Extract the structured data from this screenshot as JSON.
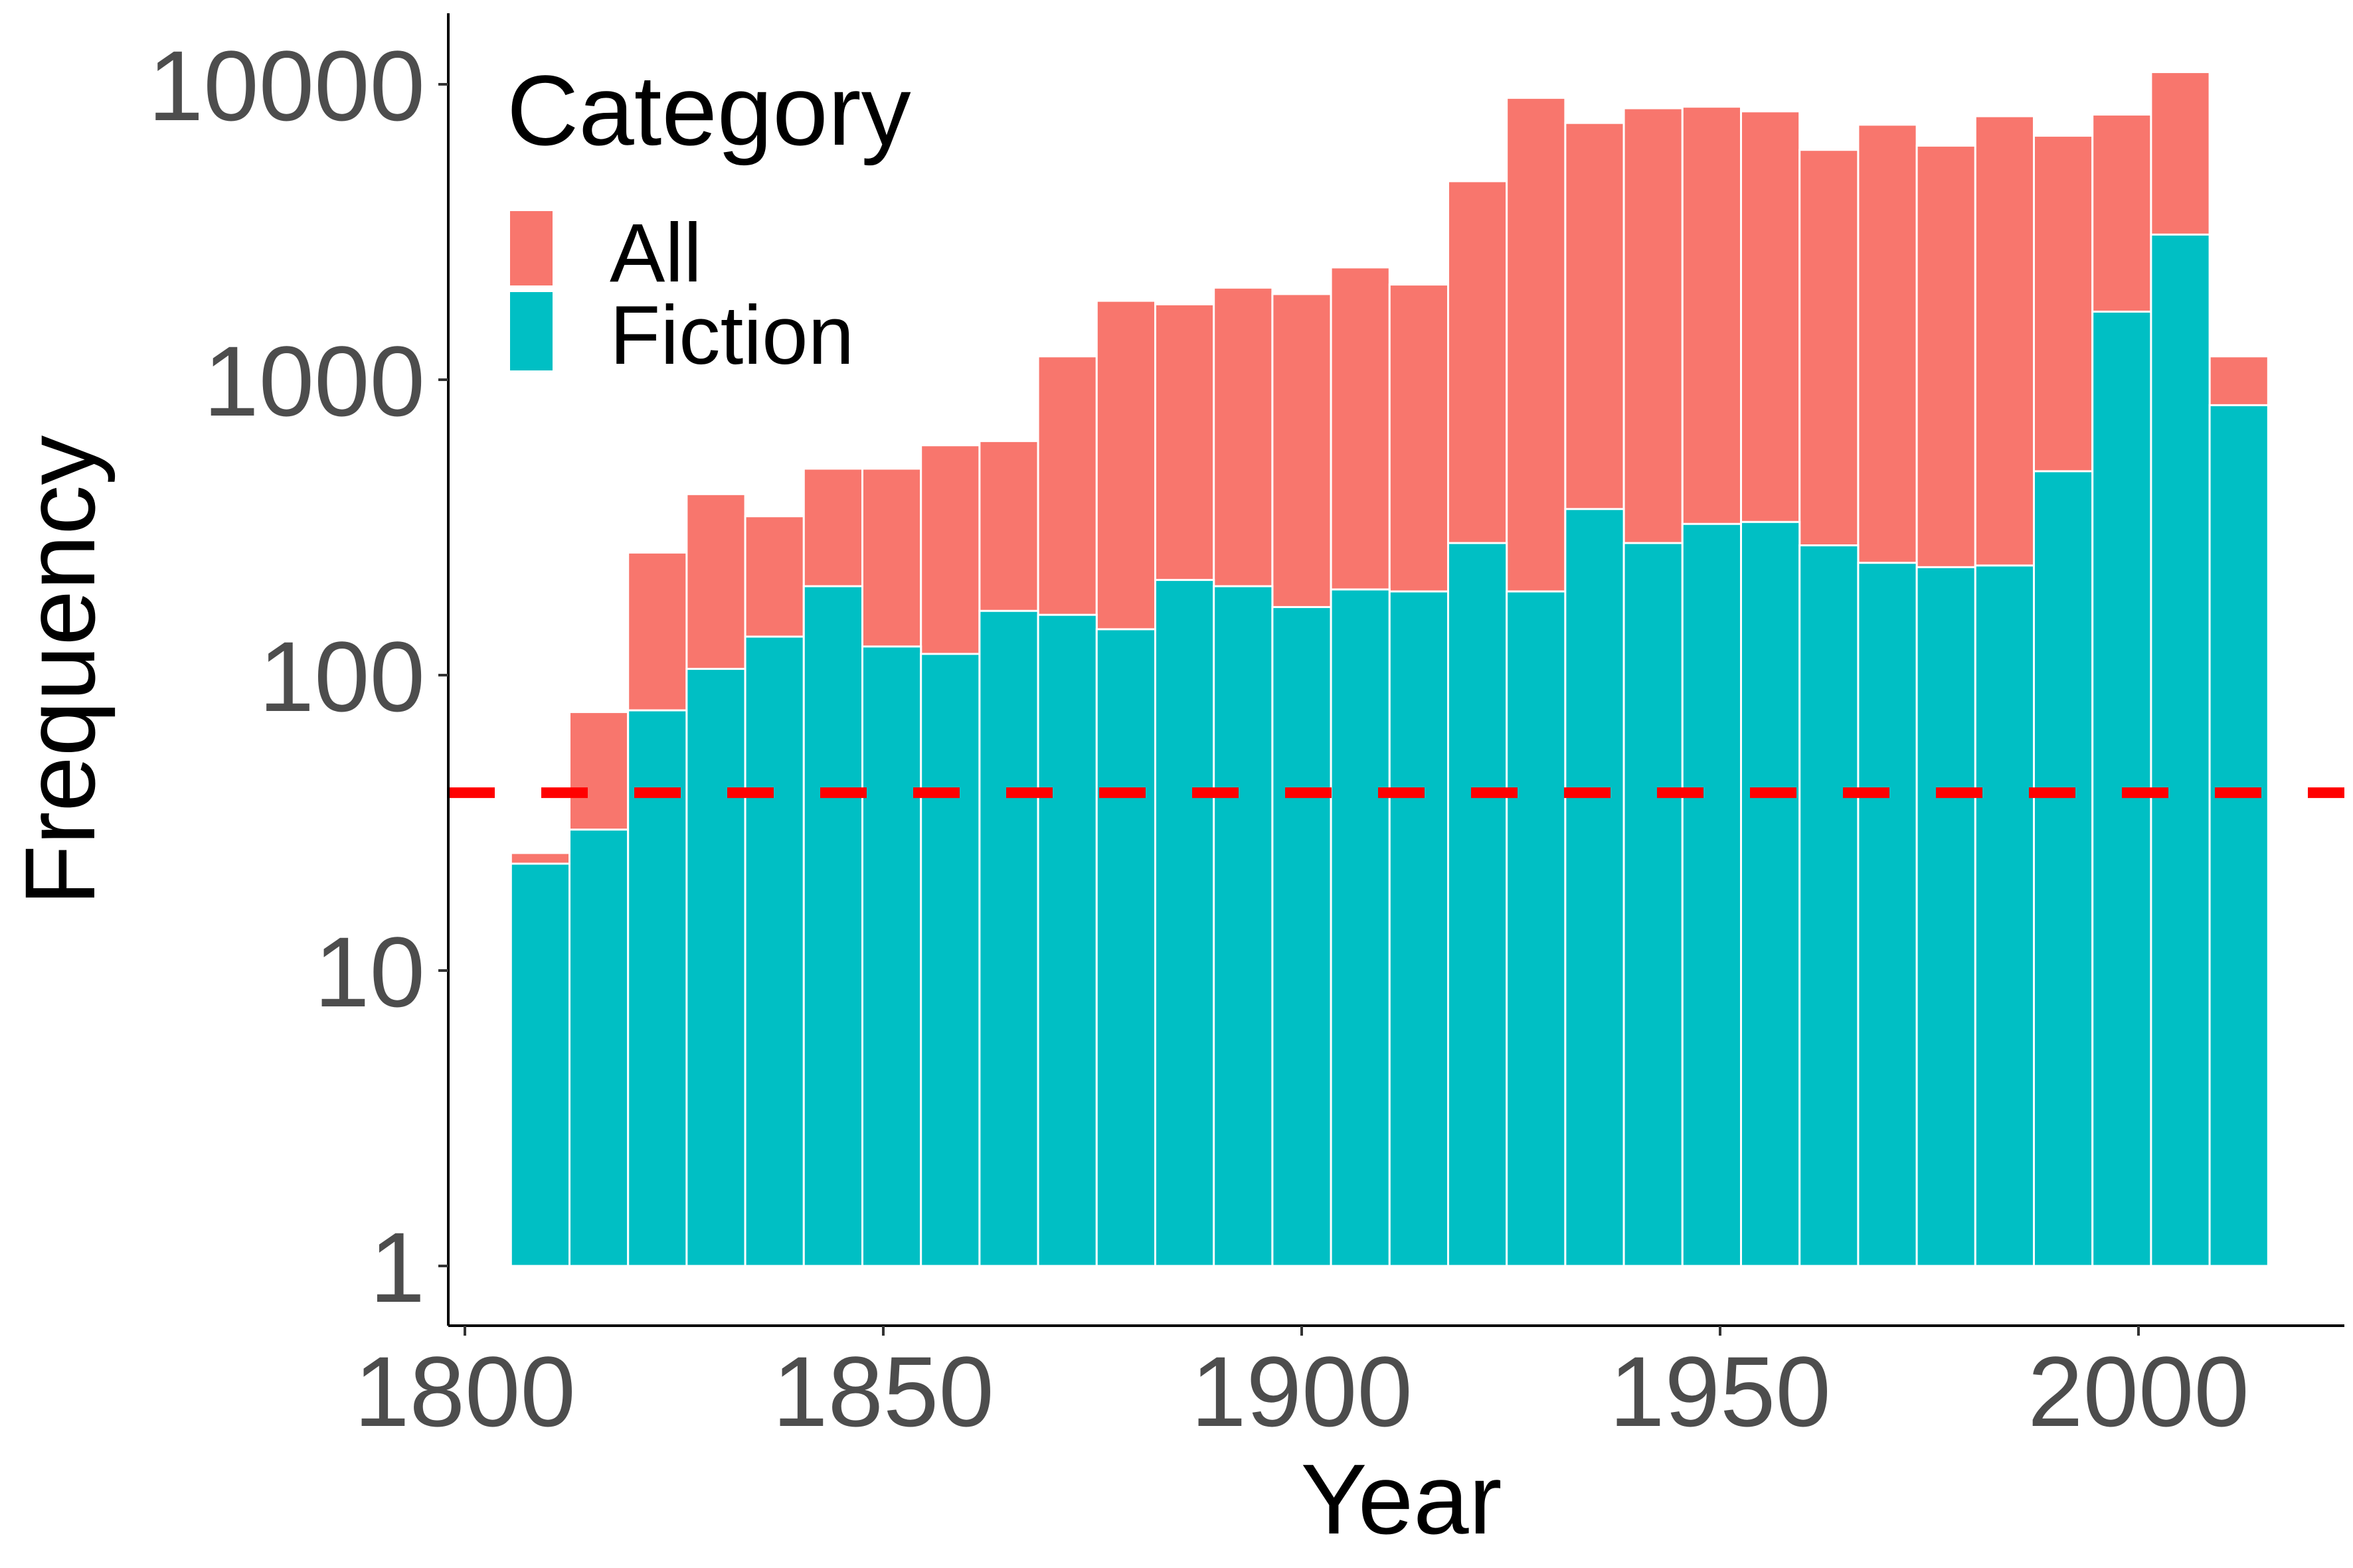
{
  "chart_data": {
    "type": "bar",
    "stacked": true,
    "x_scale": "linear",
    "y_scale": "log10",
    "xlabel": "Year",
    "ylabel": "Frequency",
    "xlim": [
      1800,
      2020
    ],
    "ylim": [
      1,
      10000
    ],
    "x_ticks": [
      1800,
      1850,
      1900,
      1950,
      2000
    ],
    "x_tick_labels": [
      "1800",
      "1850",
      "1900",
      "1950",
      "2000"
    ],
    "y_ticks": [
      1,
      10,
      100,
      1000,
      10000
    ],
    "y_tick_labels": [
      "1",
      "10",
      "100",
      "1000",
      "10000"
    ],
    "bin_width_years": 7,
    "x": [
      1809,
      1816,
      1823,
      1830,
      1837,
      1844,
      1851,
      1858,
      1865,
      1872,
      1879,
      1886,
      1893,
      1900,
      1907,
      1914,
      1921,
      1928,
      1935,
      1942,
      1949,
      1956,
      1963,
      1970,
      1977,
      1984,
      1991,
      1998,
      2005,
      2012
    ],
    "series": [
      {
        "name": "All",
        "color": "#F8766D",
        "values": [
          25,
          75,
          260,
          410,
          345,
          500,
          500,
          600,
          620,
          1200,
          1850,
          1800,
          2050,
          1950,
          2400,
          2100,
          4700,
          9000,
          7400,
          8300,
          8400,
          8100,
          6000,
          7300,
          6200,
          7800,
          6700,
          7900,
          11000,
          1200
        ]
      },
      {
        "name": "Fiction",
        "color": "#00BFC4",
        "values": [
          23,
          30,
          76,
          105,
          135,
          200,
          125,
          118,
          165,
          160,
          143,
          210,
          200,
          170,
          195,
          192,
          280,
          192,
          365,
          280,
          325,
          330,
          275,
          240,
          232,
          235,
          490,
          1700,
          3100,
          820
        ]
      }
    ],
    "reference_line": {
      "y": 40,
      "style": "dashed",
      "color": "#FF0000"
    },
    "legend": {
      "title": "Category",
      "position": "top-left",
      "items": [
        {
          "label": "All",
          "color": "#F8766D"
        },
        {
          "label": "Fiction",
          "color": "#00BFC4"
        }
      ]
    },
    "grid": false
  }
}
